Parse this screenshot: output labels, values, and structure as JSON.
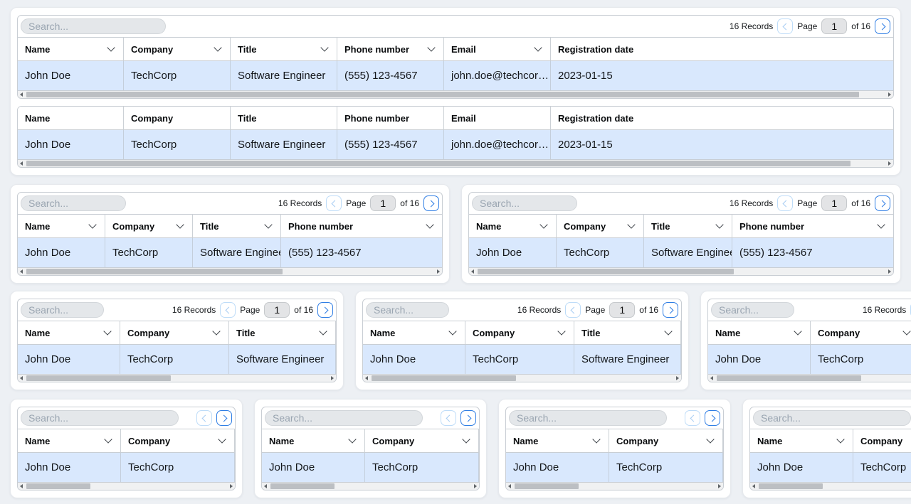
{
  "labels": {
    "search_placeholder": "Search...",
    "records": "16 Records",
    "page": "Page",
    "page_value": "1",
    "of": "of 16"
  },
  "columns": {
    "name": "Name",
    "company": "Company",
    "title": "Title",
    "phone": "Phone number",
    "email": "Email",
    "registration": "Registration date"
  },
  "row": {
    "name": "John Doe",
    "company": "TechCorp",
    "title": "Software Engineer",
    "phone": "(555) 123-4567",
    "email": "john.doe@techcor…",
    "registration": "2023-01-15"
  },
  "icons": {
    "sort": "chevron-down-icon",
    "prev": "chevron-left-icon",
    "next": "chevron-right-icon",
    "scroll_left": "scroll-left-arrow-icon",
    "scroll_right": "scroll-right-arrow-icon"
  },
  "colors": {
    "accent_blue": "#2e7de4",
    "disabled_blue_border": "#bedcf8",
    "row_highlight": "#d9e8fd",
    "page_background": "#edf0f4",
    "table_border": "#c9ced4"
  },
  "tables": {
    "large1": {
      "toolbar": "full",
      "search_w": 204,
      "thumb": 0.97,
      "cols": [
        {
          "key": "name",
          "w": 149,
          "sort": true
        },
        {
          "key": "company",
          "w": 150,
          "sort": true
        },
        {
          "key": "title",
          "w": 150,
          "sort": true
        },
        {
          "key": "phone",
          "w": 150,
          "sort": true
        },
        {
          "key": "email",
          "w": 150,
          "sort": true
        },
        {
          "key": "registration",
          "w": 0,
          "sort": false
        }
      ]
    },
    "large2": {
      "toolbar": "none",
      "search_w": 0,
      "thumb": 0.96,
      "cols": [
        {
          "key": "name",
          "w": 149,
          "sort": false
        },
        {
          "key": "company",
          "w": 150,
          "sort": false
        },
        {
          "key": "title",
          "w": 150,
          "sort": false
        },
        {
          "key": "phone",
          "w": 150,
          "sort": false
        },
        {
          "key": "email",
          "w": 150,
          "sort": false
        },
        {
          "key": "registration",
          "w": 0,
          "sort": false
        }
      ]
    },
    "mid": {
      "toolbar": "full",
      "search_w": 148,
      "thumb": 0.63,
      "cols": [
        {
          "key": "name",
          "w": 123,
          "sort": true
        },
        {
          "key": "company",
          "w": 123,
          "sort": true
        },
        {
          "key": "title",
          "w": 124,
          "sort": true
        },
        {
          "key": "phone",
          "w": 0,
          "sort": true
        }
      ]
    },
    "small": {
      "toolbar": "full",
      "search_w": 117,
      "thumb": 0.48,
      "cols": [
        {
          "key": "name",
          "w": 144,
          "sort": true
        },
        {
          "key": "company",
          "w": 153,
          "sort": true
        },
        {
          "key": "title",
          "w": 150,
          "sort": true
        }
      ]
    },
    "mini": {
      "toolbar": "buttons",
      "search_w": 222,
      "thumb": 0.32,
      "cols": [
        {
          "key": "name",
          "w": 145,
          "sort": true
        },
        {
          "key": "company",
          "w": 160,
          "sort": true
        }
      ]
    }
  },
  "rows": [
    {
      "cards": [
        [
          "large1",
          "large2"
        ]
      ]
    },
    {
      "cards": [
        [
          "mid"
        ],
        [
          "mid"
        ]
      ]
    },
    {
      "cards": [
        [
          "small"
        ],
        [
          "small"
        ],
        [
          "small"
        ]
      ]
    },
    {
      "cards": [
        [
          "mini"
        ],
        [
          "mini"
        ],
        [
          "mini"
        ],
        [
          "mini"
        ]
      ]
    }
  ]
}
